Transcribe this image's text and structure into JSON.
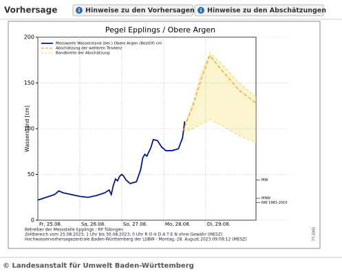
{
  "header": {
    "title": "Vorhersage",
    "buttons": [
      "Hinweise zu den Vorhersagen",
      "Hinweise zu den Abschätzungen"
    ]
  },
  "chart_data": {
    "type": "line",
    "title": "Pegel Epplings / Obere Argen",
    "y_label": "Wasserstand [cm]",
    "xlim": [
      0,
      5.2
    ],
    "xticks": [
      {
        "value": 0,
        "label": "Fr, 25.08."
      },
      {
        "value": 1,
        "label": "Sa, 26.08."
      },
      {
        "value": 2,
        "label": "So, 27.08."
      },
      {
        "value": 3,
        "label": "Mo, 28.08."
      },
      {
        "value": 4,
        "label": "Di, 29.08."
      }
    ],
    "ylim": [
      0,
      200
    ],
    "yticks": [
      0,
      50,
      100,
      150,
      200
    ],
    "grid": true,
    "series": [
      {
        "name": "Messwerte Wasserstand (ber.) Obere Argen   (BestOf)   cm",
        "color": "#00148c",
        "style": "solid",
        "x": [
          0,
          0.2,
          0.4,
          0.5,
          0.6,
          0.8,
          1.0,
          1.2,
          1.4,
          1.6,
          1.7,
          1.75,
          1.8,
          1.85,
          1.9,
          1.95,
          2.0,
          2.05,
          2.1,
          2.2,
          2.35,
          2.45,
          2.5,
          2.55,
          2.6,
          2.7,
          2.75,
          2.85,
          2.95,
          3.05,
          3.2,
          3.35,
          3.45,
          3.5
        ],
        "values": [
          22,
          25,
          28,
          32,
          30,
          28,
          26,
          25,
          27,
          30,
          33,
          28,
          38,
          45,
          43,
          48,
          50,
          48,
          44,
          40,
          42,
          55,
          68,
          72,
          70,
          80,
          88,
          87,
          80,
          76,
          76,
          78,
          90,
          108
        ]
      },
      {
        "name": "Abschätzung der weiteren Tendenz",
        "color": "#f0a020",
        "style": "dashed",
        "x": [
          3.45,
          3.7,
          3.9,
          4.1,
          4.4,
          4.8,
          5.2
        ],
        "values": [
          97,
          125,
          155,
          180,
          163,
          142,
          128
        ]
      }
    ],
    "band": {
      "name": "Bandbreite der Abschätzung",
      "color": "#f5e9a0",
      "x": [
        3.45,
        3.7,
        3.9,
        4.1,
        4.4,
        4.8,
        5.2
      ],
      "upper": [
        97,
        130,
        160,
        183,
        170,
        150,
        135
      ],
      "lower": [
        97,
        100,
        105,
        110,
        103,
        92,
        85
      ]
    },
    "levels": [
      {
        "value": 44,
        "label": "MW"
      },
      {
        "value": 24,
        "label": "MNW"
      },
      {
        "value": 19,
        "label": "NW 1981-2010"
      }
    ],
    "notes": [
      "Betreiber der Messstelle Epplings : RP Tübingen",
      "Zeitbereich vom 25.08.2023, 1 Uhr bis 30.08.2023, 0 Uhr    R O H D A T E N ohne Gewähr (MESZ)",
      "Hochwasservorhersagezentrale Baden-Württemberg der LUBW - Montag, 28. August 2023 09:09:12 (MESZ)"
    ],
    "code": "77-2001"
  },
  "footer": "© Landesanstalt für Umwelt Baden-Württemberg"
}
